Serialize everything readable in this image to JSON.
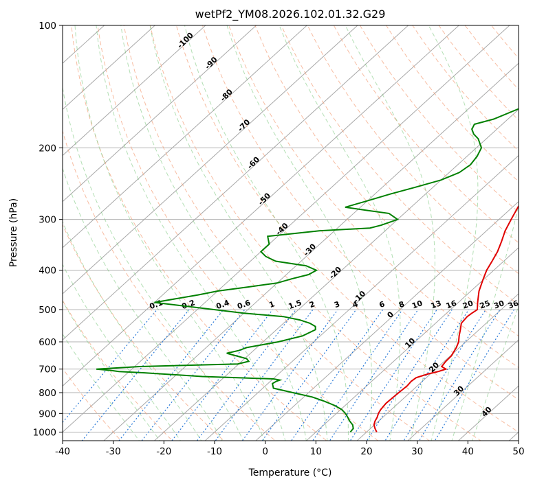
{
  "chart_data": {
    "type": "skew-t",
    "title": "wetPf2_YM08.2026.102.01.32.G29",
    "xlabel": "Temperature (°C)",
    "ylabel": "Pressure (hPa)",
    "xlim": [
      -40,
      50
    ],
    "ylim": [
      1050,
      100
    ],
    "x_ticks": [
      "-40",
      "-30",
      "-20",
      "-10",
      "0",
      "10",
      "20",
      "30",
      "40",
      "50"
    ],
    "y_ticks": [
      "100",
      "200",
      "300",
      "400",
      "500",
      "600",
      "700",
      "800",
      "900",
      "1000"
    ],
    "dry_adiabat_labels": [
      "-100",
      "-90",
      "-80",
      "-70",
      "-60",
      "-50",
      "-40",
      "-30",
      "-20",
      "-10"
    ],
    "isotherm_labels": [
      "0",
      "10",
      "20",
      "30",
      "40"
    ],
    "mixing_ratio_labels": [
      "0.1",
      "0.2",
      "0.4",
      "0.6",
      "1",
      "1.5",
      "2",
      "3",
      "4",
      "6",
      "8",
      "10",
      "13",
      "16",
      "20",
      "25",
      "30",
      "36"
    ],
    "series": [
      {
        "name": "Temperature",
        "color": "#e00000",
        "p": [
          1000,
          980,
          960,
          940,
          920,
          900,
          880,
          850,
          820,
          800,
          770,
          750,
          735,
          720,
          710,
          700,
          690,
          670,
          650,
          620,
          600,
          580,
          560,
          540,
          520,
          510,
          500,
          480,
          450,
          420,
          400,
          380,
          360,
          340,
          320,
          300,
          280,
          260,
          240,
          220,
          205,
          200,
          195,
          185,
          175,
          165,
          155,
          145,
          135,
          125,
          115,
          108,
          100
        ],
        "t": [
          22.0,
          20.9,
          19.9,
          19.3,
          18.9,
          18.3,
          17.9,
          17.6,
          17.7,
          17.8,
          18.0,
          17.8,
          18.0,
          19.5,
          21.0,
          22.0,
          20.6,
          20.3,
          20.2,
          19.4,
          18.6,
          17.4,
          16.3,
          15.1,
          14.8,
          15.0,
          15.3,
          13.8,
          11.6,
          9.8,
          8.6,
          7.7,
          6.7,
          5.3,
          3.7,
          2.4,
          1.1,
          -0.1,
          -1.1,
          -1.9,
          -1.7,
          -1.2,
          0.3,
          3.0,
          4.5,
          5.6,
          6.6,
          7.5,
          7.8,
          8.0,
          8.5,
          9.0,
          10.0
        ]
      },
      {
        "name": "Dewpoint",
        "color": "#008000",
        "p": [
          1000,
          980,
          960,
          940,
          920,
          900,
          880,
          860,
          840,
          820,
          800,
          780,
          760,
          750,
          745,
          740,
          730,
          715,
          710,
          705,
          700,
          690,
          680,
          670,
          660,
          650,
          640,
          630,
          620,
          600,
          580,
          560,
          550,
          540,
          530,
          520,
          510,
          480,
          460,
          450,
          440,
          430,
          420,
          410,
          400,
          390,
          380,
          370,
          360,
          345,
          330,
          320,
          315,
          310,
          300,
          290,
          285,
          280,
          270,
          260,
          250,
          240,
          230,
          220,
          210,
          200,
          190,
          185,
          180,
          175,
          170,
          160,
          150,
          140,
          130,
          120,
          110,
          100
        ],
        "t": [
          16.8,
          16.6,
          15.7,
          14.3,
          13.1,
          11.8,
          10.2,
          7.9,
          5.0,
          1.7,
          -3.1,
          -7.9,
          -9.1,
          -8.8,
          -8.4,
          -9.9,
          -24.5,
          -36.7,
          -42.0,
          -44.0,
          -47.0,
          -39.0,
          -20.2,
          -18.6,
          -19.6,
          -22.1,
          -24.7,
          -22.9,
          -22.0,
          -17.0,
          -13.5,
          -12.3,
          -13.0,
          -14.8,
          -17.5,
          -21.5,
          -30.0,
          -50.0,
          -43.0,
          -40.0,
          -35.0,
          -30.0,
          -28.0,
          -25.6,
          -25.0,
          -28.0,
          -35.0,
          -38.0,
          -40.0,
          -40.0,
          -42.0,
          -33.0,
          -23.6,
          -22.0,
          -20.0,
          -23.0,
          -28.0,
          -33.0,
          -30.0,
          -27.0,
          -23.5,
          -20.0,
          -18.0,
          -17.5,
          -18.0,
          -19.0,
          -21.6,
          -23.5,
          -24.9,
          -25.5,
          -22.8,
          -20.0,
          -20.5,
          -20.8,
          -20.6,
          -20.0,
          -19.0,
          -16.0
        ]
      }
    ]
  }
}
